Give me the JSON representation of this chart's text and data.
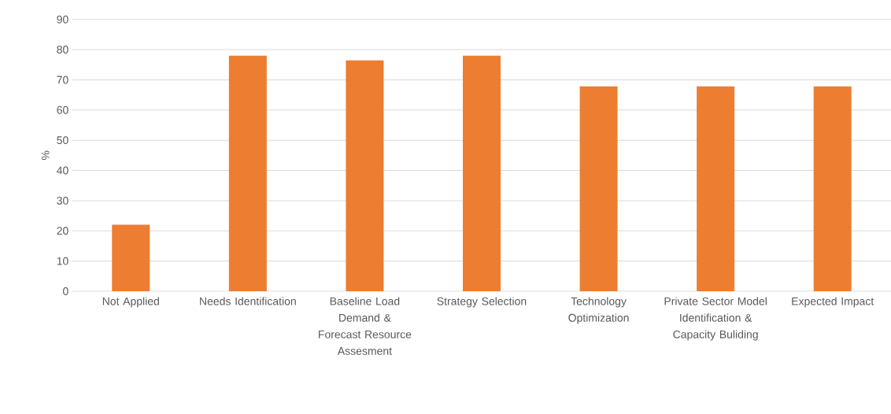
{
  "chart_data": {
    "type": "bar",
    "ylabel": "%",
    "categories": [
      "Not Applied",
      "Needs Identification",
      "Baseline Load Demand & Forecast Resource Assesment",
      "Strategy Selection",
      "Technology Optimization",
      "Private Sector Model Identification & Capacity Buliding",
      "Expected Impact"
    ],
    "values": [
      22,
      78,
      76.4,
      78,
      67.8,
      67.8,
      67.8
    ],
    "color": "#ed7d31",
    "ylim": [
      0,
      90
    ],
    "yticks": [
      0,
      10,
      20,
      30,
      40,
      50,
      60,
      70,
      80,
      90
    ],
    "grid": "y"
  }
}
